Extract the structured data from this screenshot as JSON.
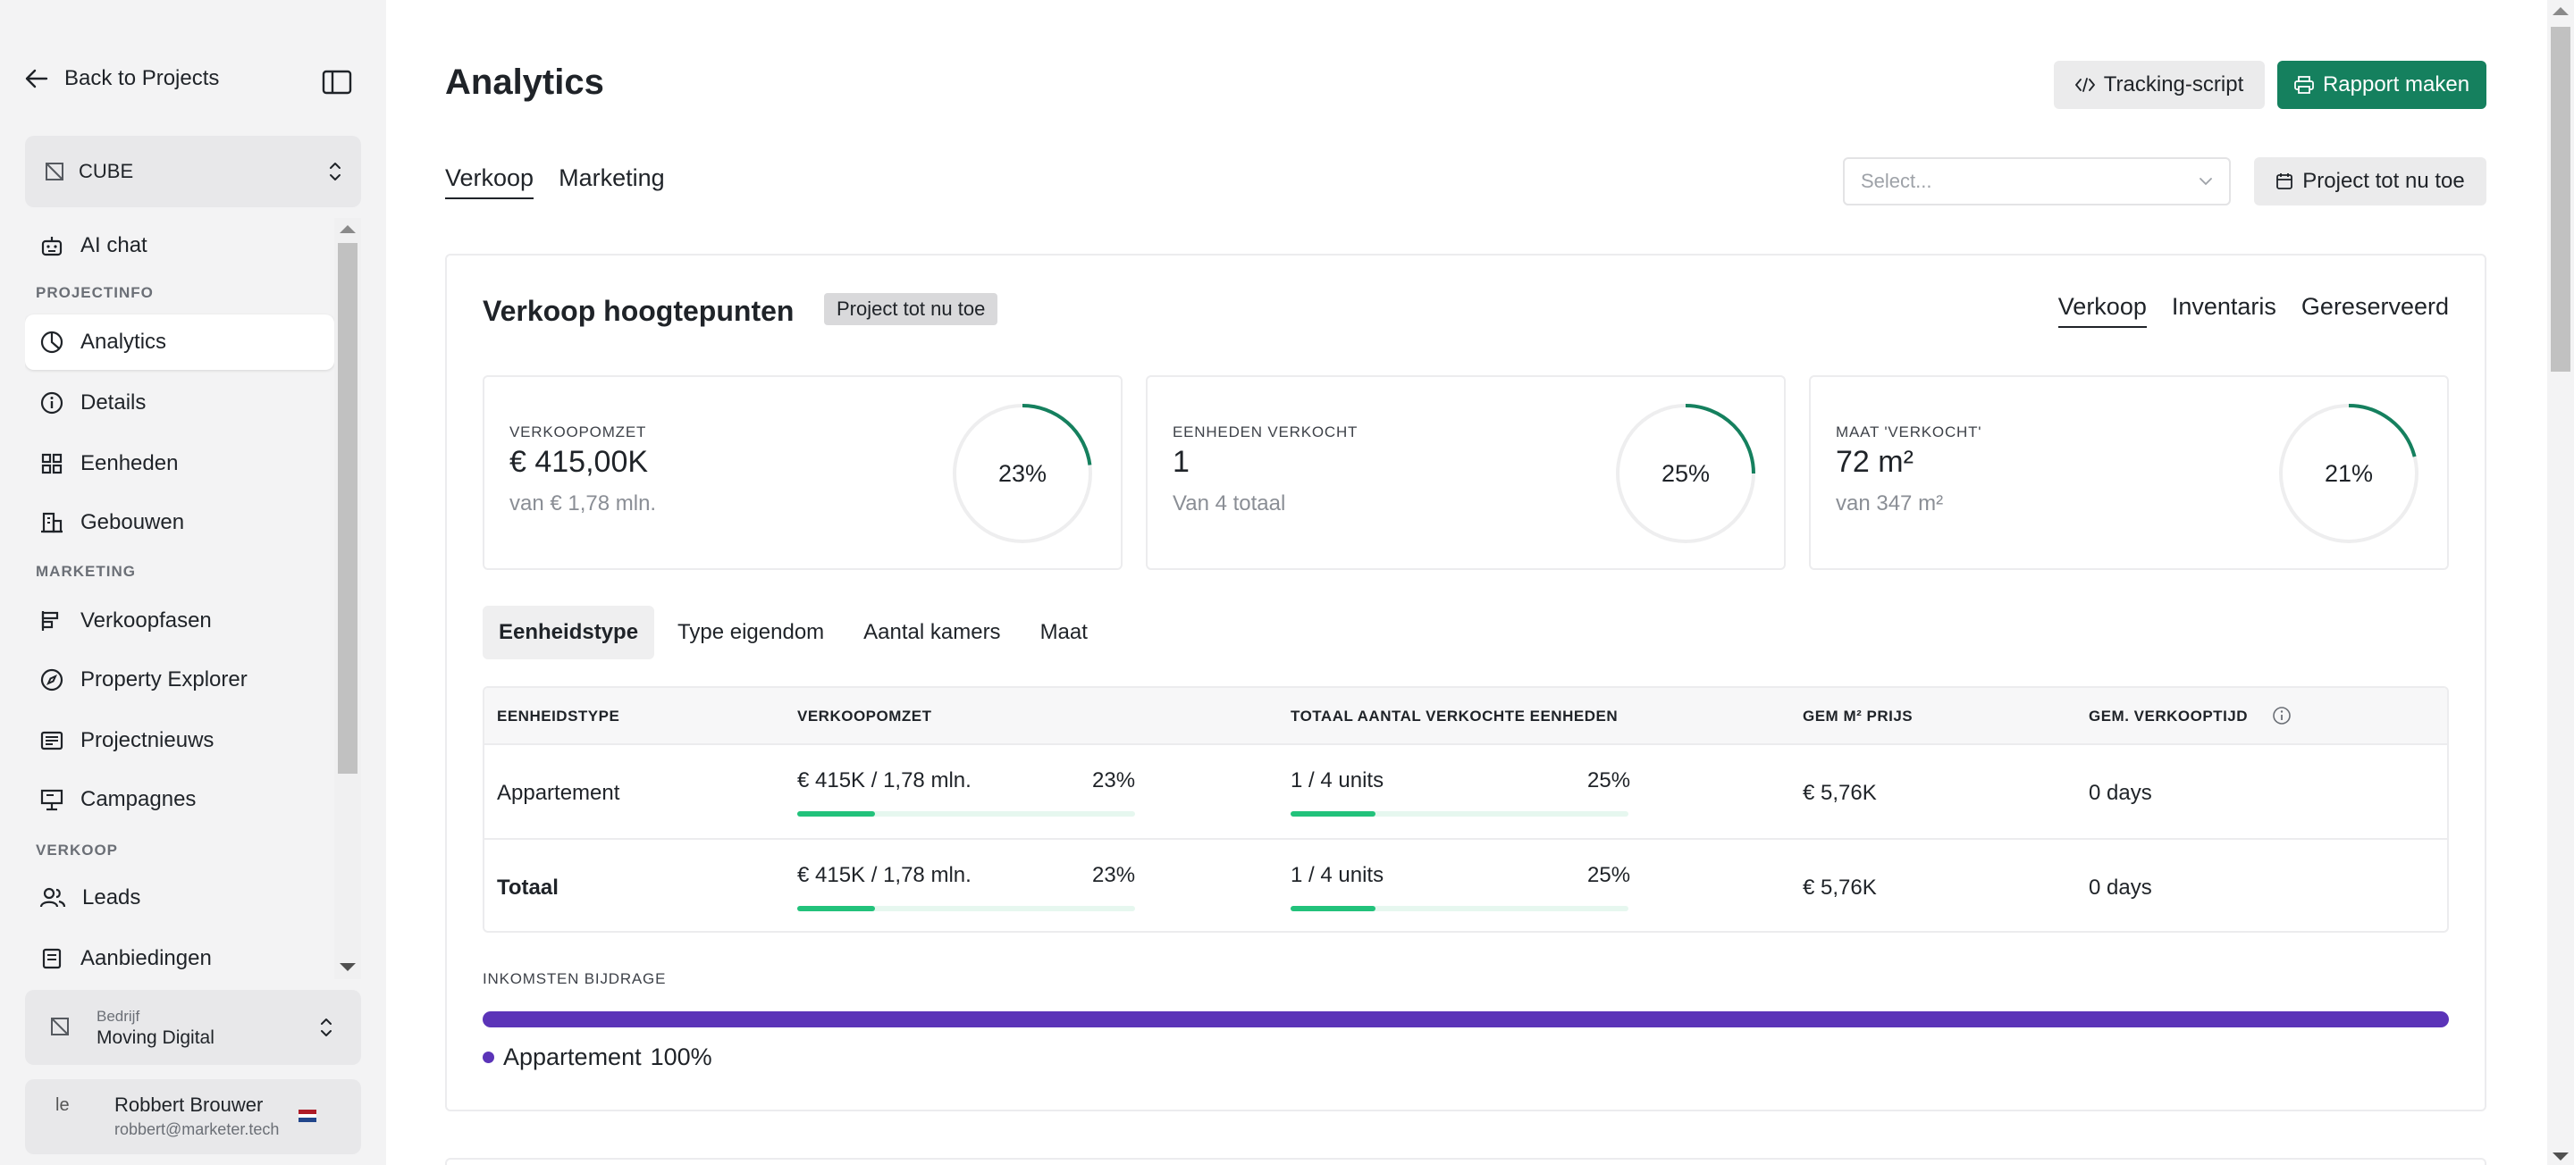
{
  "sidebar": {
    "back_label": "Back to Projects",
    "project_name": "CUBE",
    "items": [
      {
        "label": "AI chat"
      },
      {
        "section": "PROJECTINFO"
      },
      {
        "label": "Analytics"
      },
      {
        "label": "Details"
      },
      {
        "label": "Eenheden"
      },
      {
        "label": "Gebouwen"
      },
      {
        "section": "MARKETING"
      },
      {
        "label": "Verkoopfasen"
      },
      {
        "label": "Property Explorer"
      },
      {
        "label": "Projectnieuws"
      },
      {
        "label": "Campagnes"
      },
      {
        "section": "VERKOOP"
      },
      {
        "label": "Leads"
      },
      {
        "label": "Aanbiedingen"
      }
    ],
    "company": {
      "caption": "Bedrijf",
      "name": "Moving Digital"
    },
    "user": {
      "avatar_alt": "le",
      "name": "Robbert Brouwer",
      "email": "robbert@marketer.tech"
    }
  },
  "header": {
    "title": "Analytics",
    "tracking_label": "Tracking-script",
    "report_label": "Rapport maken",
    "tabs": [
      {
        "label": "Verkoop"
      },
      {
        "label": "Marketing"
      }
    ],
    "select_placeholder": "Select...",
    "period_label": "Project tot nu toe"
  },
  "panel": {
    "title": "Verkoop hoogtepunten",
    "badge": "Project tot nu toe",
    "tabs": [
      {
        "label": "Verkoop"
      },
      {
        "label": "Inventaris"
      },
      {
        "label": "Gereserveerd"
      }
    ],
    "kpis": [
      {
        "label": "VERKOOPOMZET",
        "value": "€ 415,00K",
        "sub": "van € 1,78 mln.",
        "percent": 23,
        "percent_label": "23%"
      },
      {
        "label": "EENHEDEN VERKOCHT",
        "value": "1",
        "sub": "Van 4 totaal",
        "percent": 25,
        "percent_label": "25%"
      },
      {
        "label": "MAAT 'VERKOCHT'",
        "value": "72 m²",
        "sub": "van 347 m²",
        "percent": 21,
        "percent_label": "21%"
      }
    ],
    "segments": [
      {
        "label": "Eenheidstype"
      },
      {
        "label": "Type eigendom"
      },
      {
        "label": "Aantal kamers"
      },
      {
        "label": "Maat"
      }
    ],
    "table": {
      "headers": [
        "EENHEIDSTYPE",
        "VERKOOPOMZET",
        "TOTAAL AANTAL VERKOCHTE EENHEDEN",
        "GEM M² PRIJS",
        "GEM. VERKOOPTIJD"
      ],
      "rows": [
        {
          "type": "Appartement",
          "revenue": "€ 415K / 1,78 mln.",
          "revenue_pct": "23%",
          "revenue_frac": 0.23,
          "units": "1 / 4 units",
          "units_pct": "25%",
          "units_frac": 0.25,
          "price": "€ 5,76K",
          "time": "0 days"
        },
        {
          "type": "Totaal",
          "revenue": "€ 415K / 1,78 mln.",
          "revenue_pct": "23%",
          "revenue_frac": 0.23,
          "units": "1 / 4 units",
          "units_pct": "25%",
          "units_frac": 0.25,
          "price": "€ 5,76K",
          "time": "0 days"
        }
      ]
    },
    "contribution": {
      "label": "INKOMSTEN BIJDRAGE",
      "items": [
        {
          "name": "Appartement",
          "percent_label": "100%",
          "fraction": 1.0,
          "color": "#5b34b8"
        }
      ]
    }
  },
  "colors": {
    "accent": "#15805e",
    "progress": "#22c27b",
    "contribution": "#5b34b8"
  }
}
